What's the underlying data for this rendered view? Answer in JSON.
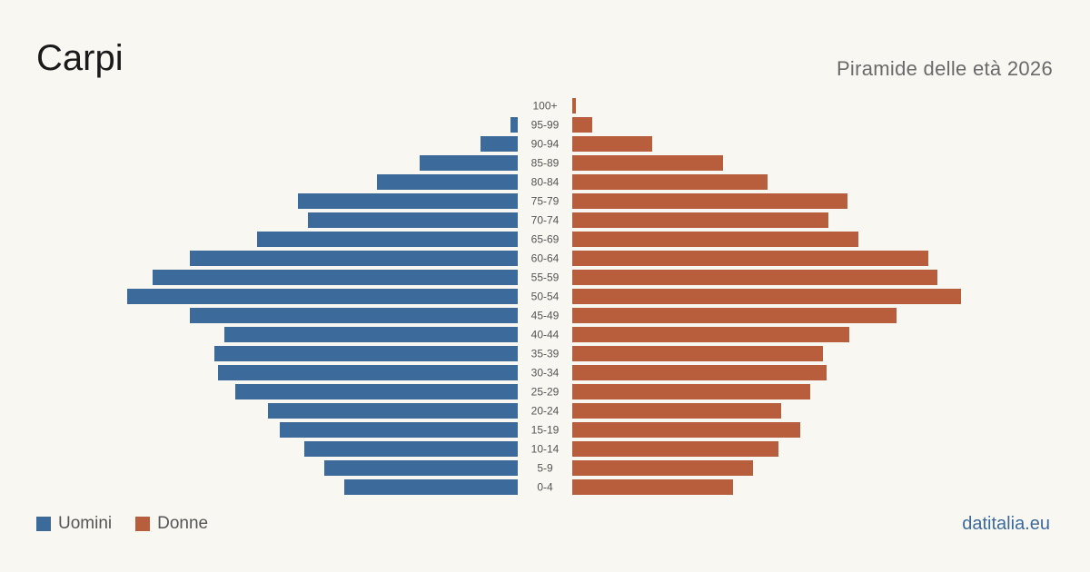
{
  "header": {
    "title": "Carpi",
    "subtitle": "Piramide delle età 2026"
  },
  "legend": {
    "men_label": "Uomini",
    "women_label": "Donne"
  },
  "footer": {
    "brand": "datitalia.eu"
  },
  "colors": {
    "men": "#3b6a9b",
    "women": "#b95e3d",
    "background": "#f9f7f2",
    "age_label": "#555555"
  },
  "chart_data": {
    "type": "bar",
    "orientation": "horizontal-pyramid",
    "categories": [
      "100+",
      "95-99",
      "90-94",
      "85-89",
      "80-84",
      "75-79",
      "70-74",
      "65-69",
      "60-64",
      "55-59",
      "50-54",
      "45-49",
      "40-44",
      "35-39",
      "30-34",
      "25-29",
      "20-24",
      "15-19",
      "10-14",
      "5-9",
      "0-4"
    ],
    "series": [
      {
        "name": "Uomini",
        "values": [
          0,
          8,
          41,
          108,
          155,
          242,
          231,
          287,
          361,
          402,
          430,
          361,
          323,
          334,
          330,
          311,
          275,
          262,
          235,
          213,
          191
        ]
      },
      {
        "name": "Donne",
        "values": [
          4,
          22,
          88,
          166,
          215,
          303,
          282,
          315,
          392,
          402,
          428,
          357,
          305,
          276,
          280,
          262,
          230,
          251,
          227,
          199,
          177
        ]
      }
    ],
    "axis_labels_shown": false,
    "grid": false,
    "legend_position": "bottom-left"
  }
}
